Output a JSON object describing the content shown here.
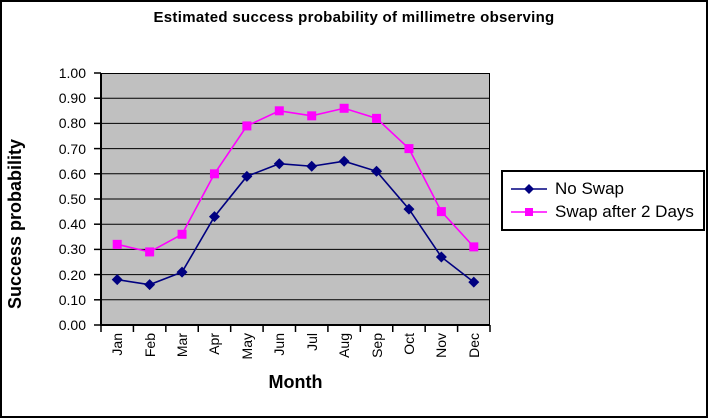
{
  "chart_data": {
    "type": "line",
    "title": "Estimated success probability of millimetre observing",
    "xlabel": "Month",
    "ylabel": "Success probability",
    "categories": [
      "Jan",
      "Feb",
      "Mar",
      "Apr",
      "May",
      "Jun",
      "Jul",
      "Aug",
      "Sep",
      "Oct",
      "Nov",
      "Dec"
    ],
    "series": [
      {
        "name": "No Swap",
        "color": "#000080",
        "marker": "diamond",
        "values": [
          0.18,
          0.16,
          0.21,
          0.43,
          0.59,
          0.64,
          0.63,
          0.65,
          0.61,
          0.46,
          0.27,
          0.17
        ]
      },
      {
        "name": "Swap after 2 Days",
        "color": "#FF00FF",
        "marker": "square",
        "values": [
          0.32,
          0.29,
          0.36,
          0.6,
          0.79,
          0.85,
          0.83,
          0.86,
          0.82,
          0.7,
          0.45,
          0.31
        ]
      }
    ],
    "ylim": [
      0.0,
      1.0
    ],
    "ytick_step": 0.1,
    "ytick_labels": [
      "0.00",
      "0.10",
      "0.20",
      "0.30",
      "0.40",
      "0.50",
      "0.60",
      "0.70",
      "0.80",
      "0.90",
      "1.00"
    ],
    "grid": true,
    "legend_position": "right",
    "plot_bg": "#C0C0C0",
    "gridline_color": "#000000",
    "axis_color": "#000000"
  }
}
